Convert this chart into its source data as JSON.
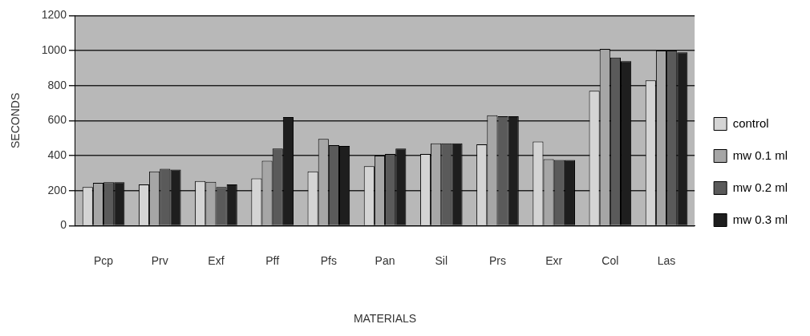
{
  "chart_data": {
    "type": "bar",
    "xlabel": "MATERIALS",
    "ylabel": "SECONDS",
    "categories": [
      "Pcp",
      "Prv",
      "Exf",
      "Pff",
      "Pfs",
      "Pan",
      "Sil",
      "Prs",
      "Exr",
      "Col",
      "Las"
    ],
    "series": [
      {
        "name": "control",
        "color": "#d4d4d4",
        "values": [
          220,
          235,
          255,
          270,
          310,
          340,
          410,
          465,
          480,
          770,
          830
        ]
      },
      {
        "name": "mw 0.1 ml",
        "color": "#a6a6a6",
        "values": [
          245,
          310,
          250,
          370,
          495,
          400,
          470,
          630,
          380,
          1010,
          1000
        ]
      },
      {
        "name": "mw 0.2 ml",
        "color": "#5a5a5a",
        "values": [
          248,
          325,
          220,
          440,
          460,
          410,
          470,
          625,
          375,
          960,
          1000
        ]
      },
      {
        "name": "mw 0.3 ml",
        "color": "#1e1e1e",
        "values": [
          248,
          320,
          235,
          620,
          455,
          440,
          470,
          625,
          375,
          940,
          990
        ]
      }
    ],
    "ylim": [
      0,
      1200
    ],
    "yticks": [
      0,
      200,
      400,
      600,
      800,
      1000,
      1200
    ],
    "grid": "y",
    "legend": "right"
  }
}
